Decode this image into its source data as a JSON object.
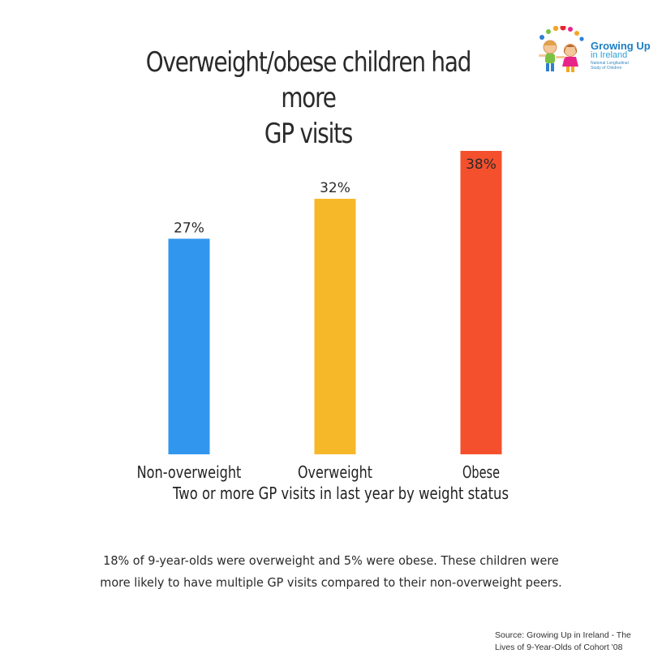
{
  "header": {
    "title_line1": "Overweight/obese children had more",
    "title_line2": "GP visits"
  },
  "logo": {
    "name": "Growing Up",
    "name_sub": "in Ireland",
    "tagline": "National Longitudinal Study of Children"
  },
  "chart_data": {
    "type": "bar",
    "title": "Overweight/obese children had more GP visits",
    "categories": [
      "Non-overweight",
      "Overweight",
      "Obese"
    ],
    "values": [
      27,
      32,
      38
    ],
    "value_labels": [
      "27%",
      "32%",
      "38%"
    ],
    "unit": "%",
    "colors": [
      "#3197ee",
      "#f6b829",
      "#f5502d"
    ],
    "xlabel": "Two or more GP visits in last year by weight status",
    "ylabel": "",
    "ylim": [
      0,
      38
    ],
    "grid": false,
    "legend": "none"
  },
  "caption": "18% of 9-year-olds were overweight and 5% were obese.  These children were more likely to have multiple GP visits compared to their non-overweight peers.",
  "source": {
    "line1": "Source: Growing Up in Ireland - The",
    "line2": "Lives of 9-Year-Olds of Cohort '08"
  }
}
